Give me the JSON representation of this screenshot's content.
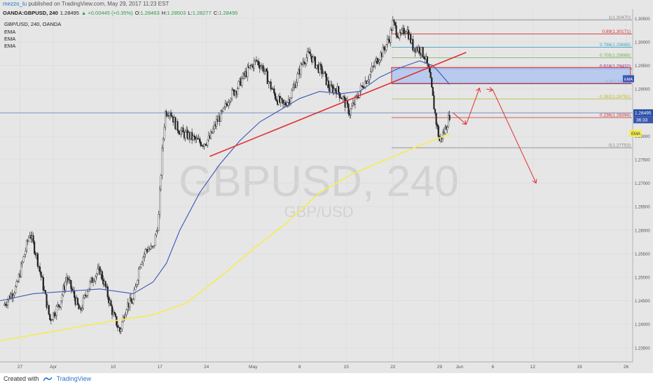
{
  "header": {
    "user": "mezzo_lu",
    "published": "published on TradingView.com, May 29, 2017 11:23 EST"
  },
  "legend": {
    "symbol": "OANDA:GBPUSD, 240",
    "last": "1.28495",
    "change": "▲ +0.00445 (+0.35%)",
    "o_label": "O:",
    "o": "1.28463",
    "h_label": "H:",
    "h": "1.28503",
    "l_label": "L:",
    "l": "1.28277",
    "c_label": "C:",
    "c": "1.28495",
    "title": "GBP/USD, 240, OANDA",
    "indicators": [
      "EMA",
      "EMA",
      "EMA"
    ]
  },
  "watermark": {
    "main": "GBPUSD, 240",
    "sub": "GBP/USD"
  },
  "footer": {
    "created_with": "Created with",
    "brand": "TradingView"
  },
  "colors": {
    "background": "#e6e6e6",
    "up_candle": "#ffffff",
    "down_candle": "#222222",
    "ema_fast": "#3b57b5",
    "ema_slow": "#f5ec55",
    "trendline": "#e0302f",
    "zone_fill": "#a8c0ef",
    "zone_border": "#d0312e",
    "projection": "#e0302f",
    "price_label": "#2a4fa8"
  },
  "chart_data": {
    "type": "candlestick",
    "symbol": "GBPUSD",
    "timeframe": "240",
    "ylim": [
      1.232,
      1.307
    ],
    "y_ticks": [
      "1.30500",
      "1.30000",
      "1.29500",
      "1.29000",
      "1.28500",
      "1.28000",
      "1.27500",
      "1.27000",
      "1.26500",
      "1.26000",
      "1.25500",
      "1.25000",
      "1.24500",
      "1.24000",
      "1.23500"
    ],
    "x_ticks": [
      "27",
      "Apr",
      "10",
      "17",
      "24",
      "May",
      "8",
      "15",
      "22",
      "29",
      "Jun",
      "6",
      "12",
      "19",
      "26"
    ],
    "x_tick_days": [
      -5,
      0,
      9,
      16,
      23,
      30,
      37,
      44,
      51,
      58,
      61,
      66,
      72,
      79,
      86
    ],
    "close_path": [
      [
        -7.5,
        1.244
      ],
      [
        -5.5,
        1.248
      ],
      [
        -4.5,
        1.254
      ],
      [
        -3.5,
        1.2595
      ],
      [
        -2.5,
        1.2545
      ],
      [
        -1.5,
        1.248
      ],
      [
        -0.5,
        1.241
      ],
      [
        1,
        1.2445
      ],
      [
        2,
        1.25
      ],
      [
        3,
        1.2465
      ],
      [
        4,
        1.2425
      ],
      [
        5,
        1.247
      ],
      [
        6,
        1.25
      ],
      [
        7,
        1.2515
      ],
      [
        8,
        1.247
      ],
      [
        9,
        1.242
      ],
      [
        10,
        1.2385
      ],
      [
        11,
        1.244
      ],
      [
        12,
        1.245
      ],
      [
        13,
        1.253
      ],
      [
        14,
        1.256
      ],
      [
        15,
        1.256
      ],
      [
        15.8,
        1.262
      ],
      [
        16.3,
        1.276
      ],
      [
        16.8,
        1.285
      ],
      [
        17.5,
        1.2855
      ],
      [
        18.5,
        1.282
      ],
      [
        19.5,
        1.2805
      ],
      [
        20.5,
        1.28
      ],
      [
        21.5,
        1.279
      ],
      [
        22.5,
        1.2785
      ],
      [
        23.5,
        1.2795
      ],
      [
        24.5,
        1.283
      ],
      [
        25.5,
        1.285
      ],
      [
        26.5,
        1.2885
      ],
      [
        27.5,
        1.29
      ],
      [
        28.5,
        1.2925
      ],
      [
        29.5,
        1.2945
      ],
      [
        30.5,
        1.296
      ],
      [
        31.5,
        1.2945
      ],
      [
        32.5,
        1.291
      ],
      [
        33.5,
        1.288
      ],
      [
        34.5,
        1.2865
      ],
      [
        35.5,
        1.288
      ],
      [
        36.5,
        1.292
      ],
      [
        37.5,
        1.296
      ],
      [
        38.5,
        1.2975
      ],
      [
        39.5,
        1.295
      ],
      [
        40.5,
        1.2935
      ],
      [
        41.5,
        1.29
      ],
      [
        42.5,
        1.29
      ],
      [
        43.5,
        1.288
      ],
      [
        44.5,
        1.285
      ],
      [
        45.5,
        1.288
      ],
      [
        46.5,
        1.291
      ],
      [
        47.5,
        1.293
      ],
      [
        48.5,
        1.296
      ],
      [
        49.5,
        1.298
      ],
      [
        50.5,
        1.301
      ],
      [
        51,
        1.304
      ],
      [
        52,
        1.301
      ],
      [
        53,
        1.303
      ],
      [
        54,
        1.299
      ],
      [
        55,
        1.2985
      ],
      [
        55.8,
        1.297
      ],
      [
        56.5,
        1.293
      ],
      [
        57,
        1.288
      ],
      [
        57.5,
        1.283
      ],
      [
        58,
        1.279
      ],
      [
        58.7,
        1.281
      ],
      [
        59.3,
        1.2835
      ],
      [
        59.6,
        1.285
      ]
    ],
    "ema_fast": [
      [
        -8,
        1.245
      ],
      [
        -3,
        1.2465
      ],
      [
        2,
        1.247
      ],
      [
        7,
        1.2475
      ],
      [
        12,
        1.2465
      ],
      [
        15,
        1.249
      ],
      [
        17,
        1.253
      ],
      [
        19,
        1.26
      ],
      [
        22,
        1.268
      ],
      [
        25,
        1.274
      ],
      [
        28,
        1.279
      ],
      [
        31,
        1.283
      ],
      [
        34,
        1.2855
      ],
      [
        37,
        1.288
      ],
      [
        40,
        1.2895
      ],
      [
        43,
        1.289
      ],
      [
        46,
        1.2895
      ],
      [
        49,
        1.2925
      ],
      [
        52,
        1.2945
      ],
      [
        55,
        1.296
      ],
      [
        57,
        1.295
      ],
      [
        58,
        1.2935
      ],
      [
        59.5,
        1.291
      ]
    ],
    "ema_slow": [
      [
        -8,
        1.2365
      ],
      [
        0,
        1.2385
      ],
      [
        8,
        1.2405
      ],
      [
        15,
        1.242
      ],
      [
        20,
        1.2445
      ],
      [
        25,
        1.25
      ],
      [
        30,
        1.256
      ],
      [
        35,
        1.2615
      ],
      [
        40,
        1.268
      ],
      [
        45,
        1.272
      ],
      [
        50,
        1.275
      ],
      [
        55,
        1.278
      ],
      [
        59.6,
        1.2805
      ]
    ],
    "fib_levels": [
      {
        "ratio": "1",
        "price": "1.30470",
        "color": "#888888"
      },
      {
        "ratio": "0.89",
        "price": "1.30171",
        "color": "#d0312e"
      },
      {
        "ratio": "0.786",
        "price": "1.29888",
        "color": "#3aa5c2"
      },
      {
        "ratio": "0.705",
        "price": "1.29668",
        "color": "#6fb24e"
      },
      {
        "ratio": "0.618",
        "price": "1.29432",
        "color": "#8a2f8a"
      },
      {
        "ratio": "0.5",
        "price": "1.29111",
        "color": "#3b57b5"
      },
      {
        "ratio": "0.382",
        "price": "1.28791",
        "color": "#b8b830"
      },
      {
        "ratio": "0.236",
        "price": "1.28394",
        "color": "#d0312e"
      },
      {
        "ratio": "0",
        "price": "1.27753",
        "color": "#888888"
      }
    ],
    "fib_start_day": 50.8,
    "trendline": [
      [
        23.5,
        1.2757
      ],
      [
        62,
        1.2978
      ]
    ],
    "zone": {
      "x": [
        50.8,
        72
      ],
      "y": [
        1.2912,
        1.2946
      ]
    },
    "projection_path": [
      [
        60,
        1.285
      ],
      [
        62,
        1.2825
      ],
      [
        64,
        1.2902
      ],
      [
        66,
        1.2898
      ],
      [
        72.5,
        1.27
      ]
    ],
    "current_price": "1.28495",
    "countdown": "36:33",
    "ema_tag": "EMA",
    "ema_tag_zone": "EMA"
  }
}
